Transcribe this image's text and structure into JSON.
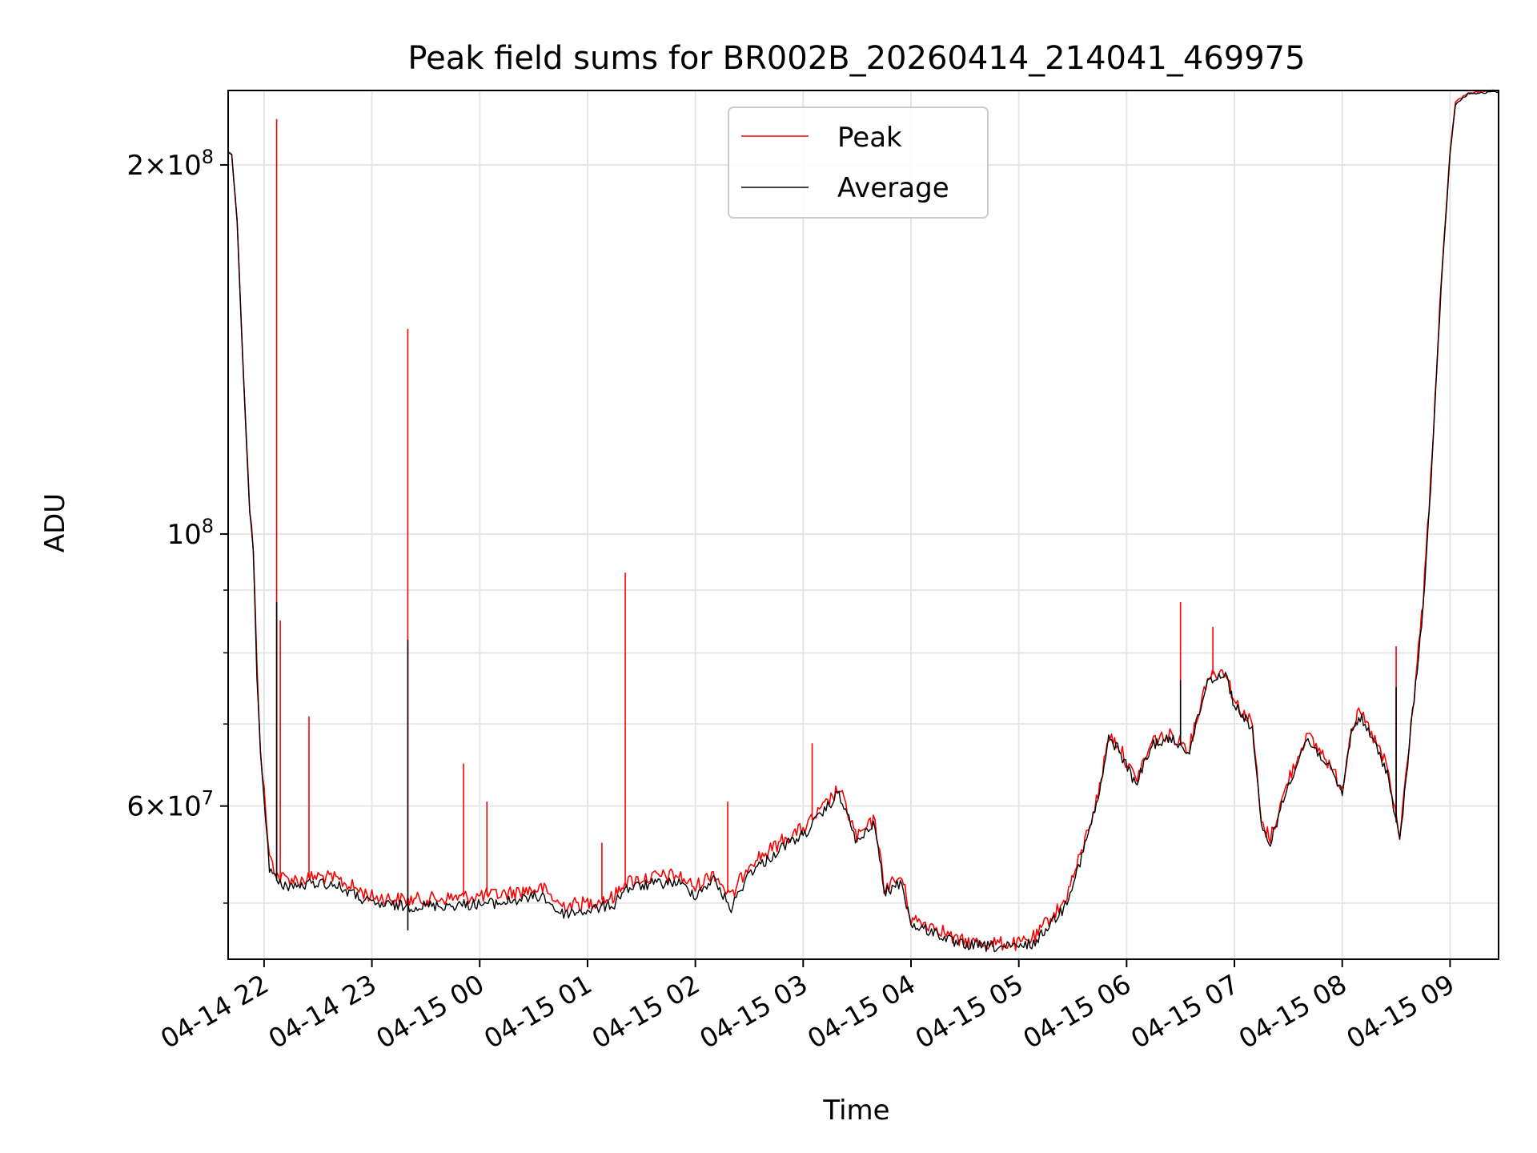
{
  "chart_data": {
    "type": "line",
    "title": "Peak field sums for BR002B_20260414_214041_469975",
    "xlabel": "Time",
    "ylabel": "ADU",
    "y_scale": "log",
    "ylim": [
      45000000,
      230000000
    ],
    "xlim": [
      "2026-04-14 21:40",
      "2026-04-15 09:27"
    ],
    "grid": true,
    "legend_position": "upper center",
    "x_ticks": [
      {
        "t": "2026-04-14 22:00",
        "label": "04-14 22"
      },
      {
        "t": "2026-04-14 23:00",
        "label": "04-14 23"
      },
      {
        "t": "2026-04-15 00:00",
        "label": "04-15 00"
      },
      {
        "t": "2026-04-15 01:00",
        "label": "04-15 01"
      },
      {
        "t": "2026-04-15 02:00",
        "label": "04-15 02"
      },
      {
        "t": "2026-04-15 03:00",
        "label": "04-15 03"
      },
      {
        "t": "2026-04-15 04:00",
        "label": "04-15 04"
      },
      {
        "t": "2026-04-15 05:00",
        "label": "04-15 05"
      },
      {
        "t": "2026-04-15 06:00",
        "label": "04-15 06"
      },
      {
        "t": "2026-04-15 07:00",
        "label": "04-15 07"
      },
      {
        "t": "2026-04-15 08:00",
        "label": "04-15 08"
      },
      {
        "t": "2026-04-15 09:00",
        "label": "04-15 09"
      }
    ],
    "y_major_ticks": [
      {
        "value": 100000000,
        "base": "10",
        "exp": "8",
        "coef": ""
      },
      {
        "value": 60000000,
        "base": "10",
        "exp": "7",
        "coef": "6"
      },
      {
        "value": 200000000,
        "base": "10",
        "exp": "8",
        "coef": "2"
      }
    ],
    "y_minor_ticks": [
      50000000,
      70000000,
      80000000,
      90000000
    ],
    "series": [
      {
        "name": "Peak",
        "color": "#ff0000",
        "points": [
          [
            "2026-04-14 21:40",
            205000000
          ],
          [
            "2026-04-14 21:42",
            204000000
          ],
          [
            "2026-04-14 21:45",
            180000000
          ],
          [
            "2026-04-14 21:48",
            140000000
          ],
          [
            "2026-04-14 21:52",
            105000000
          ],
          [
            "2026-04-14 21:54",
            97000000
          ],
          [
            "2026-04-14 21:56",
            78000000
          ],
          [
            "2026-04-14 21:58",
            67000000
          ],
          [
            "2026-04-14 22:01",
            59000000
          ],
          [
            "2026-04-14 22:03",
            54500000
          ],
          [
            "2026-04-14 22:08",
            52500000
          ],
          [
            "2026-04-14 22:20",
            52200000
          ],
          [
            "2026-04-14 22:30",
            52600000
          ],
          [
            "2026-04-14 22:40",
            52300000
          ],
          [
            "2026-04-14 22:50",
            51500000
          ],
          [
            "2026-04-14 23:00",
            50600000
          ],
          [
            "2026-04-14 23:20",
            50300000
          ],
          [
            "2026-04-14 23:45",
            50500000
          ],
          [
            "2026-04-15 00:10",
            50800000
          ],
          [
            "2026-04-15 00:25",
            51200000
          ],
          [
            "2026-04-15 00:35",
            51400000
          ],
          [
            "2026-04-15 00:45",
            49800000
          ],
          [
            "2026-04-15 01:00",
            50000000
          ],
          [
            "2026-04-15 01:15",
            50600000
          ],
          [
            "2026-04-15 01:20",
            52000000
          ],
          [
            "2026-04-15 01:35",
            52500000
          ],
          [
            "2026-04-15 01:50",
            52700000
          ],
          [
            "2026-04-15 02:00",
            51500000
          ],
          [
            "2026-04-15 02:10",
            53000000
          ],
          [
            "2026-04-15 02:20",
            50500000
          ],
          [
            "2026-04-15 02:30",
            54000000
          ],
          [
            "2026-04-15 02:40",
            55000000
          ],
          [
            "2026-04-15 02:50",
            56500000
          ],
          [
            "2026-04-15 03:00",
            57500000
          ],
          [
            "2026-04-15 03:10",
            59500000
          ],
          [
            "2026-04-15 03:20",
            62000000
          ],
          [
            "2026-04-15 03:30",
            56500000
          ],
          [
            "2026-04-15 03:40",
            58500000
          ],
          [
            "2026-04-15 03:45",
            51500000
          ],
          [
            "2026-04-15 03:55",
            52500000
          ],
          [
            "2026-04-15 04:00",
            48500000
          ],
          [
            "2026-04-15 04:15",
            47800000
          ],
          [
            "2026-04-15 04:25",
            46600000
          ],
          [
            "2026-04-15 04:40",
            46400000
          ],
          [
            "2026-04-15 05:00",
            46300000
          ],
          [
            "2026-04-15 05:10",
            47000000
          ],
          [
            "2026-04-15 05:15",
            48200000
          ],
          [
            "2026-04-15 05:25",
            50000000
          ],
          [
            "2026-04-15 05:35",
            55000000
          ],
          [
            "2026-04-15 05:45",
            62000000
          ],
          [
            "2026-04-15 05:50",
            68500000
          ],
          [
            "2026-04-15 05:55",
            67500000
          ],
          [
            "2026-04-15 06:05",
            63000000
          ],
          [
            "2026-04-15 06:15",
            68000000
          ],
          [
            "2026-04-15 06:25",
            68500000
          ],
          [
            "2026-04-15 06:35",
            67000000
          ],
          [
            "2026-04-15 06:45",
            76500000
          ],
          [
            "2026-04-15 06:55",
            77500000
          ],
          [
            "2026-04-15 07:00",
            73000000
          ],
          [
            "2026-04-15 07:10",
            70000000
          ],
          [
            "2026-04-15 07:15",
            58000000
          ],
          [
            "2026-04-15 07:20",
            56500000
          ],
          [
            "2026-04-15 07:30",
            63000000
          ],
          [
            "2026-04-15 07:40",
            68500000
          ],
          [
            "2026-04-15 07:50",
            66000000
          ],
          [
            "2026-04-15 08:00",
            62000000
          ],
          [
            "2026-04-15 08:05",
            69500000
          ],
          [
            "2026-04-15 08:10",
            71500000
          ],
          [
            "2026-04-15 08:20",
            67000000
          ],
          [
            "2026-04-15 08:25",
            64500000
          ],
          [
            "2026-04-15 08:32",
            56500000
          ],
          [
            "2026-04-15 08:40",
            74000000
          ],
          [
            "2026-04-15 08:45",
            88000000
          ],
          [
            "2026-04-15 08:50",
            115000000
          ],
          [
            "2026-04-15 08:55",
            160000000
          ],
          [
            "2026-04-15 09:00",
            205000000
          ],
          [
            "2026-04-15 09:03",
            225000000
          ],
          [
            "2026-04-15 09:10",
            229000000
          ],
          [
            "2026-04-15 09:27",
            230000000
          ]
        ],
        "spikes": [
          [
            "2026-04-14 22:07",
            218000000
          ],
          [
            "2026-04-14 22:09",
            85000000
          ],
          [
            "2026-04-14 22:25",
            71000000
          ],
          [
            "2026-04-14 23:20",
            147000000
          ],
          [
            "2026-04-14 23:51",
            65000000
          ],
          [
            "2026-04-15 00:04",
            60500000
          ],
          [
            "2026-04-15 01:08",
            56000000
          ],
          [
            "2026-04-15 01:21",
            93000000
          ],
          [
            "2026-04-15 02:18",
            60500000
          ],
          [
            "2026-04-15 03:05",
            67500000
          ],
          [
            "2026-04-15 06:30",
            88000000
          ],
          [
            "2026-04-15 06:48",
            84000000
          ],
          [
            "2026-04-15 08:30",
            81000000
          ]
        ]
      },
      {
        "name": "Average",
        "color": "#000000",
        "points": [
          [
            "2026-04-14 21:40",
            205000000
          ],
          [
            "2026-04-14 21:42",
            204000000
          ],
          [
            "2026-04-14 21:45",
            180000000
          ],
          [
            "2026-04-14 21:48",
            140000000
          ],
          [
            "2026-04-14 21:52",
            104000000
          ],
          [
            "2026-04-14 21:54",
            96000000
          ],
          [
            "2026-04-14 21:56",
            77000000
          ],
          [
            "2026-04-14 21:58",
            66000000
          ],
          [
            "2026-04-14 22:01",
            58500000
          ],
          [
            "2026-04-14 22:03",
            53500000
          ],
          [
            "2026-04-14 22:08",
            51800000
          ],
          [
            "2026-04-14 22:20",
            51600000
          ],
          [
            "2026-04-14 22:30",
            52000000
          ],
          [
            "2026-04-14 22:40",
            51700000
          ],
          [
            "2026-04-14 22:50",
            50800000
          ],
          [
            "2026-04-14 23:00",
            49900000
          ],
          [
            "2026-04-14 23:20",
            49700000
          ],
          [
            "2026-04-14 23:45",
            49800000
          ],
          [
            "2026-04-15 00:10",
            50000000
          ],
          [
            "2026-04-15 00:25",
            50400000
          ],
          [
            "2026-04-15 00:35",
            50700000
          ],
          [
            "2026-04-15 00:45",
            49000000
          ],
          [
            "2026-04-15 01:00",
            49300000
          ],
          [
            "2026-04-15 01:15",
            49900000
          ],
          [
            "2026-04-15 01:20",
            51300000
          ],
          [
            "2026-04-15 01:35",
            51800000
          ],
          [
            "2026-04-15 01:50",
            52000000
          ],
          [
            "2026-04-15 02:00",
            50800000
          ],
          [
            "2026-04-15 02:10",
            52300000
          ],
          [
            "2026-04-15 02:20",
            49500000
          ],
          [
            "2026-04-15 02:30",
            53000000
          ],
          [
            "2026-04-15 02:40",
            54200000
          ],
          [
            "2026-04-15 02:50",
            55800000
          ],
          [
            "2026-04-15 03:00",
            56800000
          ],
          [
            "2026-04-15 03:10",
            59000000
          ],
          [
            "2026-04-15 03:20",
            61500000
          ],
          [
            "2026-04-15 03:30",
            56000000
          ],
          [
            "2026-04-15 03:40",
            58000000
          ],
          [
            "2026-04-15 03:45",
            51000000
          ],
          [
            "2026-04-15 03:55",
            52000000
          ],
          [
            "2026-04-15 04:00",
            48000000
          ],
          [
            "2026-04-15 04:15",
            47200000
          ],
          [
            "2026-04-15 04:25",
            46300000
          ],
          [
            "2026-04-15 04:40",
            46100000
          ],
          [
            "2026-04-15 05:00",
            46000000
          ],
          [
            "2026-04-15 05:10",
            46500000
          ],
          [
            "2026-04-15 05:15",
            47700000
          ],
          [
            "2026-04-15 05:25",
            49500000
          ],
          [
            "2026-04-15 05:35",
            54500000
          ],
          [
            "2026-04-15 05:45",
            61500000
          ],
          [
            "2026-04-15 05:50",
            68000000
          ],
          [
            "2026-04-15 05:55",
            67000000
          ],
          [
            "2026-04-15 06:05",
            62500000
          ],
          [
            "2026-04-15 06:15",
            67500000
          ],
          [
            "2026-04-15 06:25",
            68000000
          ],
          [
            "2026-04-15 06:35",
            66500000
          ],
          [
            "2026-04-15 06:45",
            76000000
          ],
          [
            "2026-04-15 06:55",
            77000000
          ],
          [
            "2026-04-15 07:00",
            72500000
          ],
          [
            "2026-04-15 07:10",
            69500000
          ],
          [
            "2026-04-15 07:15",
            57500000
          ],
          [
            "2026-04-15 07:20",
            56000000
          ],
          [
            "2026-04-15 07:30",
            62500000
          ],
          [
            "2026-04-15 07:40",
            68000000
          ],
          [
            "2026-04-15 07:50",
            65500000
          ],
          [
            "2026-04-15 08:00",
            61500000
          ],
          [
            "2026-04-15 08:05",
            69000000
          ],
          [
            "2026-04-15 08:10",
            71000000
          ],
          [
            "2026-04-15 08:20",
            66500000
          ],
          [
            "2026-04-15 08:25",
            64000000
          ],
          [
            "2026-04-15 08:32",
            56000000
          ],
          [
            "2026-04-15 08:40",
            73500000
          ],
          [
            "2026-04-15 08:45",
            87000000
          ],
          [
            "2026-04-15 08:50",
            114000000
          ],
          [
            "2026-04-15 08:55",
            159000000
          ],
          [
            "2026-04-15 09:00",
            204000000
          ],
          [
            "2026-04-15 09:03",
            224000000
          ],
          [
            "2026-04-15 09:10",
            228500000
          ],
          [
            "2026-04-15 09:27",
            229500000
          ]
        ],
        "spikes": [
          [
            "2026-04-14 22:07",
            88000000
          ],
          [
            "2026-04-14 23:20",
            82000000
          ],
          [
            "2026-04-14 23:20",
            47500000
          ],
          [
            "2026-04-15 06:30",
            76000000
          ],
          [
            "2026-04-15 08:30",
            75000000
          ]
        ]
      }
    ]
  }
}
